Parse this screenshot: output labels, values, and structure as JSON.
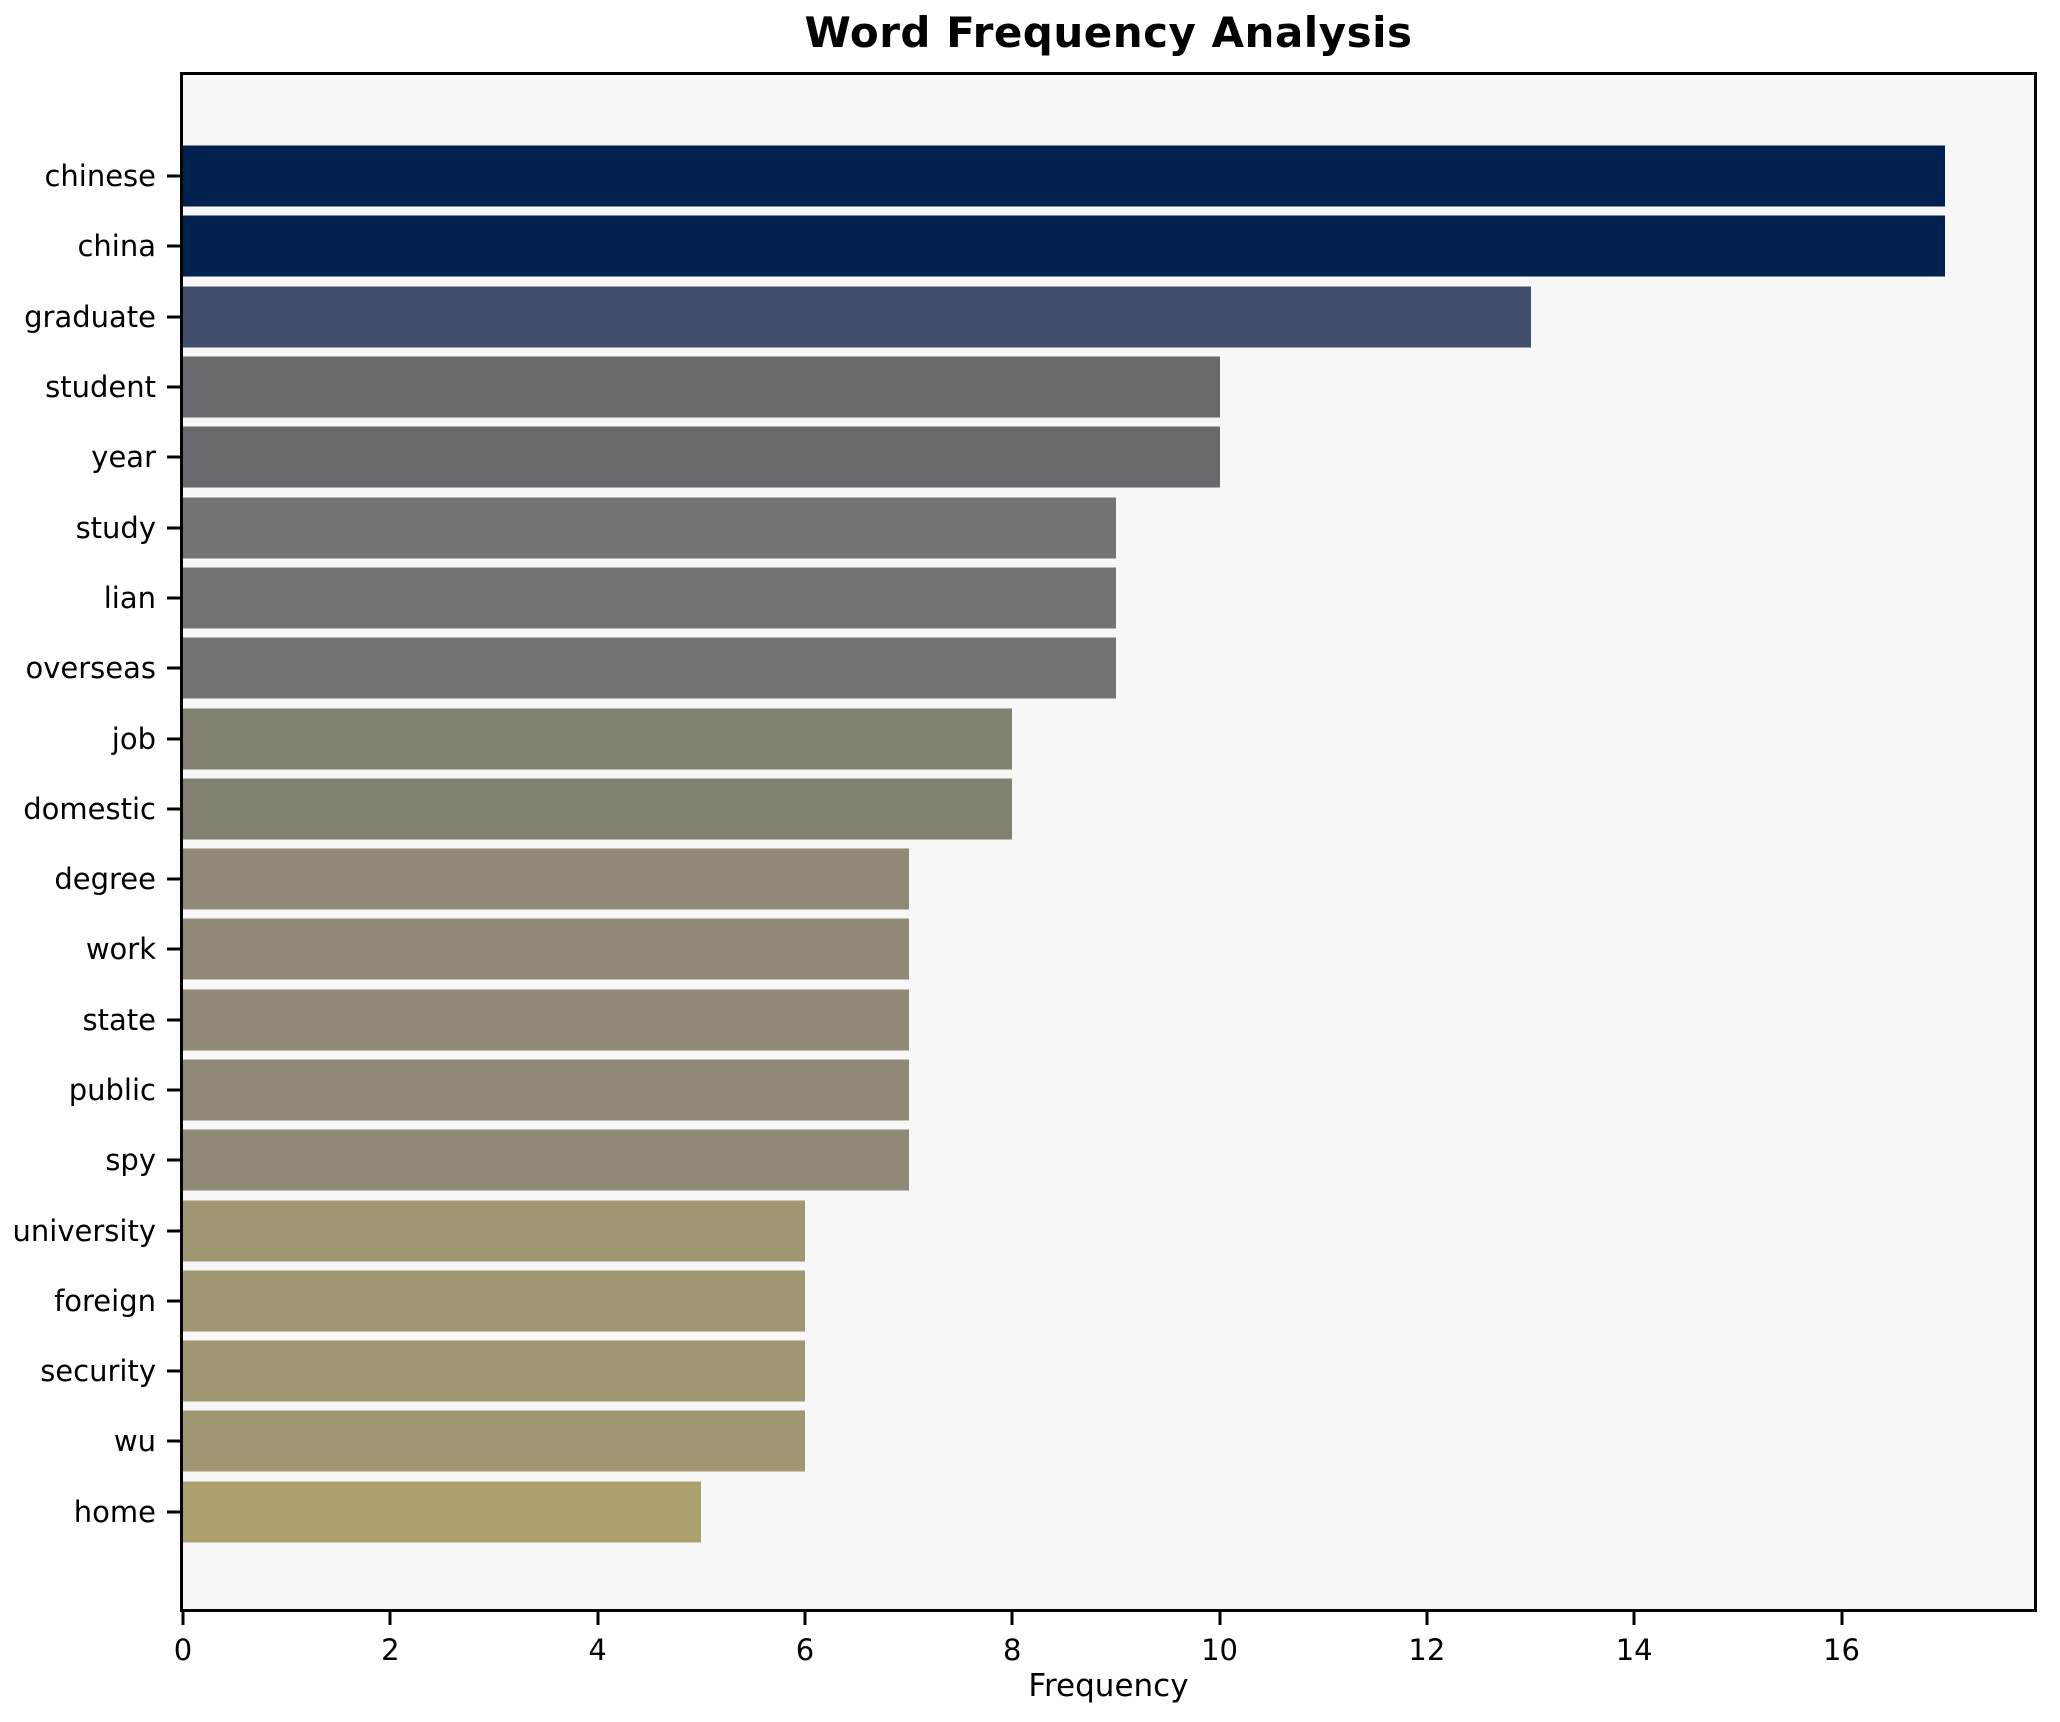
{
  "title": "Word Frequency Analysis",
  "xlabel": "Frequency",
  "chart_data": {
    "type": "bar",
    "orientation": "horizontal",
    "title": "Word Frequency Analysis",
    "xlabel": "Frequency",
    "ylabel": "",
    "xlim": [
      0,
      17.857
    ],
    "x_ticks": [
      0,
      2,
      4,
      6,
      8,
      10,
      12,
      14,
      16
    ],
    "grid": false,
    "legend": "none",
    "plot_background": "#f7f7f8",
    "categories": [
      "chinese",
      "china",
      "graduate",
      "student",
      "year",
      "study",
      "lian",
      "overseas",
      "job",
      "domestic",
      "degree",
      "work",
      "state",
      "public",
      "spy",
      "university",
      "foreign",
      "security",
      "wu",
      "home"
    ],
    "values": [
      17,
      17,
      13,
      10,
      10,
      9,
      9,
      9,
      8,
      8,
      7,
      7,
      7,
      7,
      7,
      6,
      6,
      6,
      6,
      5
    ],
    "bar_colors": [
      "#01224f",
      "#01224f",
      "#404e6b",
      "#67696d",
      "#67696d",
      "#747572",
      "#747572",
      "#747572",
      "#82806f",
      "#82806f",
      "#8f8976",
      "#8f8976",
      "#8f8976",
      "#8f8976",
      "#8f8976",
      "#9f9772",
      "#9f9772",
      "#9f9772",
      "#9f9772",
      "#ab9f6b"
    ]
  }
}
